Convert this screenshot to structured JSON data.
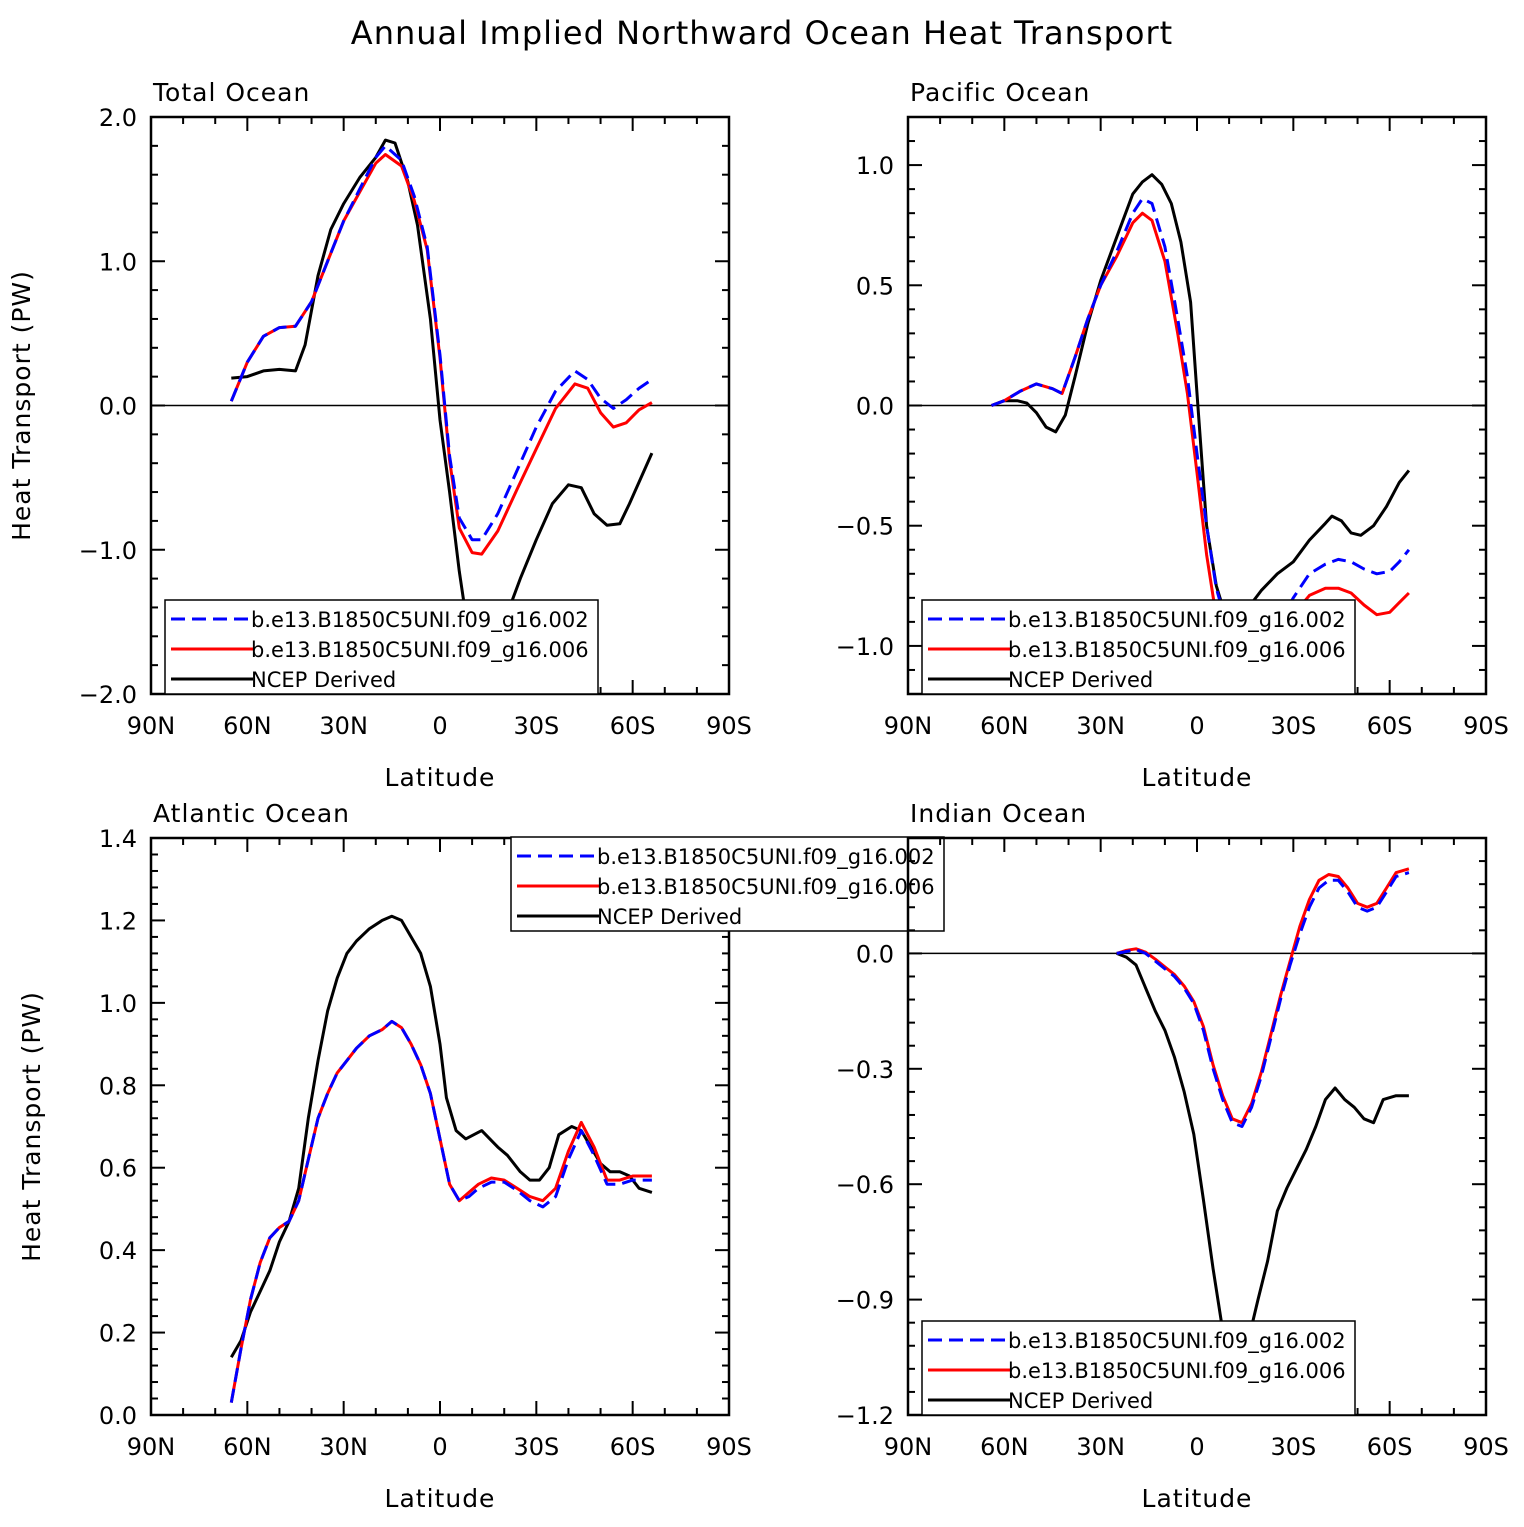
{
  "figure_title": "Annual Implied Northward Ocean Heat Transport",
  "legend_labels": [
    "b.e13.B1850C5UNI.f09_g16.002",
    "b.e13.B1850C5UNI.f09_g16.006",
    "NCEP Derived"
  ],
  "series_colors": [
    "#0000ff",
    "#ff0000",
    "#000000"
  ],
  "chart_data": [
    {
      "type": "line",
      "title": "Total Ocean",
      "xlabel": "Latitude",
      "ylabel": "Heat Transport (PW)",
      "xlim": [
        -90,
        90
      ],
      "ylim": [
        -2.0,
        2.0
      ],
      "xticks": [
        -90,
        -60,
        -30,
        0,
        30,
        60,
        90
      ],
      "xtick_labels": [
        "90N",
        "60N",
        "30N",
        "0",
        "30S",
        "60S",
        "90S"
      ],
      "yticks": [
        -2.0,
        -1.0,
        0.0,
        1.0,
        2.0
      ],
      "ytick_labels": [
        "−2.0",
        "−1.0",
        "0.0",
        "1.0",
        "2.0"
      ],
      "zero_line": true,
      "legend_position": "bottom-left",
      "series": [
        {
          "name": "b.e13.B1850C5UNI.f09_g16.002",
          "style": "dashed",
          "x": [
            -65,
            -60,
            -55,
            -50,
            -45,
            -40,
            -35,
            -30,
            -25,
            -20,
            -17,
            -12,
            -8,
            -4,
            0,
            3,
            6,
            10,
            13,
            18,
            24,
            30,
            36,
            42,
            46,
            50,
            54,
            58,
            62,
            66
          ],
          "y": [
            0.03,
            0.3,
            0.48,
            0.54,
            0.55,
            0.72,
            1.0,
            1.28,
            1.5,
            1.72,
            1.8,
            1.7,
            1.45,
            1.1,
            0.35,
            -0.35,
            -0.78,
            -0.93,
            -0.93,
            -0.75,
            -0.45,
            -0.15,
            0.1,
            0.24,
            0.18,
            0.05,
            -0.02,
            0.04,
            0.12,
            0.18
          ]
        },
        {
          "name": "b.e13.B1850C5UNI.f09_g16.006",
          "style": "solid",
          "x": [
            -65,
            -60,
            -55,
            -50,
            -45,
            -40,
            -35,
            -30,
            -25,
            -20,
            -17,
            -12,
            -8,
            -4,
            0,
            3,
            6,
            10,
            13,
            18,
            24,
            30,
            36,
            42,
            46,
            50,
            54,
            58,
            62,
            66
          ],
          "y": [
            0.03,
            0.3,
            0.48,
            0.54,
            0.55,
            0.72,
            1.0,
            1.28,
            1.48,
            1.68,
            1.74,
            1.66,
            1.42,
            1.08,
            0.33,
            -0.38,
            -0.85,
            -1.02,
            -1.03,
            -0.87,
            -0.58,
            -0.3,
            -0.02,
            0.15,
            0.12,
            -0.05,
            -0.15,
            -0.12,
            -0.03,
            0.02
          ]
        },
        {
          "name": "NCEP Derived",
          "style": "solid",
          "x": [
            -65,
            -60,
            -55,
            -50,
            -45,
            -42,
            -38,
            -34,
            -30,
            -25,
            -20,
            -17,
            -14,
            -10,
            -7,
            -3,
            0,
            3,
            6,
            9,
            12,
            16,
            20,
            25,
            30,
            35,
            40,
            44,
            48,
            52,
            56,
            59,
            62,
            66
          ],
          "y": [
            0.19,
            0.2,
            0.24,
            0.25,
            0.24,
            0.42,
            0.9,
            1.22,
            1.4,
            1.58,
            1.72,
            1.84,
            1.82,
            1.55,
            1.25,
            0.6,
            -0.1,
            -0.6,
            -1.15,
            -1.6,
            -1.7,
            -1.63,
            -1.5,
            -1.2,
            -0.93,
            -0.68,
            -0.55,
            -0.57,
            -0.75,
            -0.83,
            -0.82,
            -0.68,
            -0.53,
            -0.33
          ]
        }
      ]
    },
    {
      "type": "line",
      "title": "Pacific Ocean",
      "xlabel": "Latitude",
      "ylabel": "",
      "xlim": [
        -90,
        90
      ],
      "ylim": [
        -1.2,
        1.2
      ],
      "xticks": [
        -90,
        -60,
        -30,
        0,
        30,
        60,
        90
      ],
      "xtick_labels": [
        "90N",
        "60N",
        "30N",
        "0",
        "30S",
        "60S",
        "90S"
      ],
      "yticks": [
        -1.0,
        -0.5,
        0.0,
        0.5,
        1.0
      ],
      "ytick_labels": [
        "−1.0",
        "−0.5",
        "0.0",
        "0.5",
        "1.0"
      ],
      "zero_line": true,
      "legend_position": "bottom-left",
      "series": [
        {
          "name": "b.e13.B1850C5UNI.f09_g16.002",
          "style": "dashed",
          "x": [
            -64,
            -60,
            -55,
            -50,
            -45,
            -42,
            -38,
            -34,
            -30,
            -25,
            -20,
            -17,
            -14,
            -10,
            -6,
            -3,
            0,
            3,
            6,
            9,
            12,
            16,
            20,
            25,
            30,
            35,
            40,
            44,
            48,
            52,
            56,
            60,
            63,
            66
          ],
          "y": [
            0.0,
            0.02,
            0.06,
            0.09,
            0.07,
            0.05,
            0.2,
            0.36,
            0.5,
            0.64,
            0.8,
            0.86,
            0.84,
            0.66,
            0.36,
            0.12,
            -0.2,
            -0.5,
            -0.76,
            -0.9,
            -1.0,
            -1.06,
            -1.02,
            -0.92,
            -0.8,
            -0.7,
            -0.66,
            -0.64,
            -0.65,
            -0.68,
            -0.7,
            -0.69,
            -0.65,
            -0.6
          ]
        },
        {
          "name": "b.e13.B1850C5UNI.f09_g16.006",
          "style": "solid",
          "x": [
            -64,
            -60,
            -55,
            -50,
            -45,
            -42,
            -38,
            -34,
            -30,
            -25,
            -20,
            -17,
            -14,
            -10,
            -6,
            -3,
            0,
            3,
            6,
            9,
            12,
            16,
            20,
            25,
            30,
            35,
            40,
            44,
            48,
            52,
            56,
            60,
            63,
            66
          ],
          "y": [
            0.0,
            0.02,
            0.06,
            0.09,
            0.07,
            0.05,
            0.2,
            0.36,
            0.5,
            0.62,
            0.76,
            0.8,
            0.77,
            0.6,
            0.3,
            0.05,
            -0.28,
            -0.62,
            -0.88,
            -1.05,
            -1.15,
            -1.2,
            -1.15,
            -1.0,
            -0.87,
            -0.79,
            -0.76,
            -0.76,
            -0.78,
            -0.83,
            -0.87,
            -0.86,
            -0.82,
            -0.78
          ]
        },
        {
          "name": "NCEP Derived",
          "style": "solid",
          "x": [
            -64,
            -60,
            -56,
            -53,
            -50,
            -47,
            -44,
            -41,
            -38,
            -34,
            -30,
            -25,
            -20,
            -17,
            -14,
            -11,
            -8,
            -5,
            -2,
            0,
            3,
            6,
            9,
            12,
            16,
            20,
            25,
            30,
            35,
            40,
            42,
            45,
            48,
            51,
            55,
            59,
            63,
            66
          ],
          "y": [
            0.0,
            0.02,
            0.02,
            0.01,
            -0.03,
            -0.09,
            -0.11,
            -0.04,
            0.12,
            0.34,
            0.52,
            0.7,
            0.88,
            0.93,
            0.96,
            0.92,
            0.84,
            0.68,
            0.43,
            0.05,
            -0.5,
            -0.75,
            -0.88,
            -0.92,
            -0.84,
            -0.77,
            -0.7,
            -0.65,
            -0.56,
            -0.49,
            -0.46,
            -0.48,
            -0.53,
            -0.54,
            -0.5,
            -0.42,
            -0.32,
            -0.27
          ]
        }
      ]
    },
    {
      "type": "line",
      "title": "Atlantic Ocean",
      "xlabel": "Latitude",
      "ylabel": "Heat Transport (PW)",
      "xlim": [
        -90,
        90
      ],
      "ylim": [
        0.0,
        1.4
      ],
      "xticks": [
        -90,
        -60,
        -30,
        0,
        30,
        60,
        90
      ],
      "xtick_labels": [
        "90N",
        "60N",
        "30N",
        "0",
        "30S",
        "60S",
        "90S"
      ],
      "yticks": [
        0.0,
        0.2,
        0.4,
        0.6,
        0.8,
        1.0,
        1.2,
        1.4
      ],
      "ytick_labels": [
        "0.0",
        "0.2",
        "0.4",
        "0.6",
        "0.8",
        "1.0",
        "1.2",
        "1.4"
      ],
      "zero_line": false,
      "legend_position": "top-right",
      "series": [
        {
          "name": "b.e13.B1850C5UNI.f09_g16.002",
          "style": "dashed",
          "x": [
            -65,
            -62,
            -59,
            -56,
            -53,
            -50,
            -47,
            -44,
            -41,
            -38,
            -35,
            -32,
            -29,
            -26,
            -22,
            -18,
            -15,
            -12,
            -9,
            -6,
            -3,
            0,
            3,
            6,
            9,
            12,
            16,
            20,
            24,
            28,
            32,
            36,
            40,
            44,
            48,
            52,
            56,
            60,
            63,
            66
          ],
          "y": [
            0.03,
            0.16,
            0.28,
            0.37,
            0.43,
            0.455,
            0.47,
            0.52,
            0.62,
            0.72,
            0.78,
            0.83,
            0.86,
            0.89,
            0.92,
            0.935,
            0.955,
            0.94,
            0.9,
            0.85,
            0.78,
            0.67,
            0.56,
            0.52,
            0.53,
            0.55,
            0.565,
            0.565,
            0.545,
            0.52,
            0.505,
            0.53,
            0.62,
            0.69,
            0.63,
            0.56,
            0.56,
            0.57,
            0.57,
            0.57
          ]
        },
        {
          "name": "b.e13.B1850C5UNI.f09_g16.006",
          "style": "solid",
          "x": [
            -65,
            -62,
            -59,
            -56,
            -53,
            -50,
            -47,
            -44,
            -41,
            -38,
            -35,
            -32,
            -29,
            -26,
            -22,
            -18,
            -15,
            -12,
            -9,
            -6,
            -3,
            0,
            3,
            6,
            9,
            12,
            16,
            20,
            24,
            28,
            32,
            36,
            40,
            44,
            48,
            52,
            56,
            60,
            63,
            66
          ],
          "y": [
            0.03,
            0.16,
            0.28,
            0.37,
            0.43,
            0.455,
            0.47,
            0.52,
            0.62,
            0.72,
            0.78,
            0.83,
            0.86,
            0.89,
            0.92,
            0.935,
            0.955,
            0.94,
            0.9,
            0.85,
            0.78,
            0.67,
            0.56,
            0.52,
            0.54,
            0.56,
            0.575,
            0.57,
            0.55,
            0.53,
            0.52,
            0.55,
            0.64,
            0.71,
            0.65,
            0.57,
            0.57,
            0.58,
            0.58,
            0.58
          ]
        },
        {
          "name": "NCEP Derived",
          "style": "solid",
          "x": [
            -65,
            -62,
            -59,
            -56,
            -53,
            -50,
            -47,
            -44,
            -41,
            -38,
            -35,
            -32,
            -29,
            -26,
            -22,
            -18,
            -15,
            -12,
            -9,
            -6,
            -3,
            0,
            2,
            5,
            8,
            13,
            18,
            21,
            25,
            28,
            31,
            34,
            37,
            41,
            44,
            47,
            50,
            53,
            56,
            59,
            62,
            66
          ],
          "y": [
            0.14,
            0.18,
            0.25,
            0.3,
            0.35,
            0.42,
            0.47,
            0.55,
            0.72,
            0.86,
            0.98,
            1.06,
            1.12,
            1.15,
            1.18,
            1.2,
            1.21,
            1.2,
            1.16,
            1.12,
            1.04,
            0.9,
            0.77,
            0.69,
            0.67,
            0.69,
            0.65,
            0.63,
            0.59,
            0.57,
            0.57,
            0.6,
            0.68,
            0.7,
            0.69,
            0.65,
            0.61,
            0.59,
            0.59,
            0.58,
            0.55,
            0.54
          ]
        }
      ]
    },
    {
      "type": "line",
      "title": "Indian Ocean",
      "xlabel": "Latitude",
      "ylabel": "",
      "xlim": [
        -90,
        90
      ],
      "ylim": [
        -1.2,
        0.3
      ],
      "xticks": [
        -90,
        -60,
        -30,
        0,
        30,
        60,
        90
      ],
      "xtick_labels": [
        "90N",
        "60N",
        "30N",
        "0",
        "30S",
        "60S",
        "90S"
      ],
      "yticks": [
        -1.2,
        -0.9,
        -0.6,
        -0.3,
        0.0
      ],
      "ytick_labels": [
        "−1.2",
        "−0.9",
        "−0.6",
        "−0.3",
        "0.0"
      ],
      "zero_line": true,
      "legend_position": "bottom-left",
      "series": [
        {
          "name": "b.e13.B1850C5UNI.f09_g16.002",
          "style": "dashed",
          "x": [
            -25,
            -22,
            -19,
            -16,
            -13,
            -10,
            -7,
            -4,
            -1,
            2,
            5,
            8,
            11,
            14,
            17,
            20,
            23,
            26,
            29,
            32,
            35,
            38,
            41,
            44,
            47,
            50,
            53,
            56,
            59,
            62,
            66
          ],
          "y": [
            0.0,
            0.005,
            0.01,
            0.0,
            -0.02,
            -0.04,
            -0.06,
            -0.09,
            -0.13,
            -0.2,
            -0.3,
            -0.38,
            -0.44,
            -0.45,
            -0.4,
            -0.32,
            -0.22,
            -0.12,
            -0.03,
            0.05,
            0.12,
            0.17,
            0.19,
            0.19,
            0.16,
            0.12,
            0.11,
            0.12,
            0.16,
            0.2,
            0.21
          ]
        },
        {
          "name": "b.e13.B1850C5UNI.f09_g16.006",
          "style": "solid",
          "x": [
            -25,
            -22,
            -19,
            -16,
            -13,
            -10,
            -7,
            -4,
            -1,
            2,
            5,
            8,
            11,
            14,
            17,
            20,
            23,
            26,
            29,
            32,
            35,
            38,
            41,
            44,
            47,
            50,
            53,
            56,
            59,
            62,
            66
          ],
          "y": [
            0.0,
            0.008,
            0.012,
            0.003,
            -0.015,
            -0.035,
            -0.055,
            -0.085,
            -0.125,
            -0.19,
            -0.29,
            -0.37,
            -0.43,
            -0.44,
            -0.39,
            -0.31,
            -0.21,
            -0.11,
            -0.02,
            0.07,
            0.14,
            0.19,
            0.205,
            0.2,
            0.17,
            0.13,
            0.12,
            0.13,
            0.17,
            0.21,
            0.22
          ]
        },
        {
          "name": "NCEP Derived",
          "style": "solid",
          "x": [
            -25,
            -22,
            -19,
            -16,
            -13,
            -10,
            -7,
            -4,
            -1,
            2,
            5,
            8,
            11,
            13,
            15,
            17,
            19,
            22,
            25,
            28,
            31,
            34,
            37,
            40,
            43,
            46,
            49,
            52,
            55,
            58,
            62,
            66
          ],
          "y": [
            0.0,
            -0.01,
            -0.03,
            -0.09,
            -0.15,
            -0.2,
            -0.27,
            -0.36,
            -0.47,
            -0.64,
            -0.82,
            -0.98,
            -1.03,
            -1.05,
            -1.02,
            -0.97,
            -0.9,
            -0.8,
            -0.67,
            -0.61,
            -0.56,
            -0.51,
            -0.45,
            -0.38,
            -0.35,
            -0.38,
            -0.4,
            -0.43,
            -0.44,
            -0.38,
            -0.37,
            -0.37
          ]
        }
      ]
    }
  ]
}
